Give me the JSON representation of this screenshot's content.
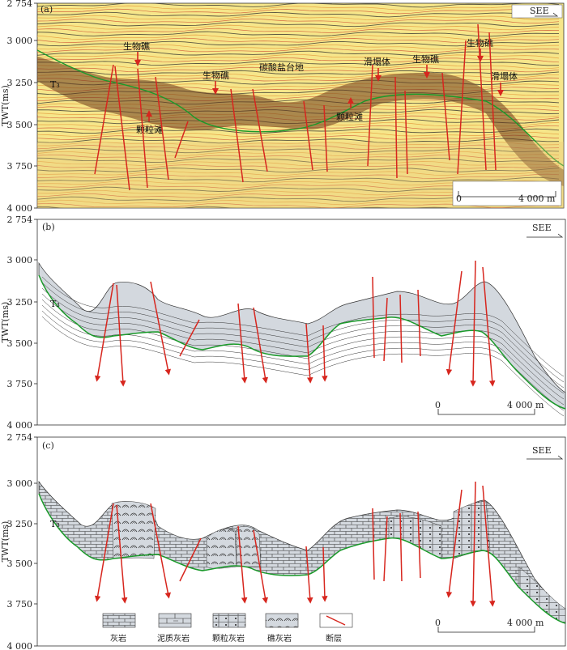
{
  "panels": [
    {
      "id": "a",
      "label": "(a)",
      "direction": "SEE",
      "horizon": "T₃",
      "ylabel": "TWT(ms)",
      "yticks": [
        "2 754",
        "3 000",
        "3 250",
        "3 500",
        "3 750",
        "4 000"
      ],
      "scale_labels": [
        "0",
        "4 000 m"
      ],
      "annotations": [
        {
          "text": "生物礁"
        },
        {
          "text": "生物礁"
        },
        {
          "text": "碳酸盐台地"
        },
        {
          "text": "颗粒滩"
        },
        {
          "text": "滑塌体"
        },
        {
          "text": "生物礁"
        },
        {
          "text": "颗粒滩"
        },
        {
          "text": "生物礁"
        },
        {
          "text": "滑塌体"
        }
      ]
    },
    {
      "id": "b",
      "label": "(b)",
      "direction": "SEE",
      "horizon": "T₃",
      "ylabel": "TWT(ms)",
      "yticks": [
        "2 754",
        "3 000",
        "3 250",
        "3 500",
        "3 750",
        "4 000"
      ],
      "scale_labels": [
        "0",
        "4 000 m"
      ]
    },
    {
      "id": "c",
      "label": "(c)",
      "direction": "SEE",
      "horizon": "T₃",
      "ylabel": "TWT(ms)",
      "yticks": [
        "2 754",
        "3 000",
        "3 250",
        "3 500",
        "3 750",
        "4 000"
      ],
      "scale_labels": [
        "0",
        "4 000 m"
      ]
    }
  ],
  "legend": [
    {
      "label": "灰岩",
      "pattern": "limestone"
    },
    {
      "label": "泥质灰岩",
      "pattern": "argillaceous-limestone"
    },
    {
      "label": "颗粒灰岩",
      "pattern": "grain-limestone"
    },
    {
      "label": "礁灰岩",
      "pattern": "reef-limestone"
    },
    {
      "label": "断层",
      "pattern": "fault"
    }
  ],
  "colors": {
    "fault": "#d7261e",
    "horizon": "#1a9a2a",
    "body_fill": "#d3d8de",
    "seismic_bg": "#f6e68a"
  }
}
